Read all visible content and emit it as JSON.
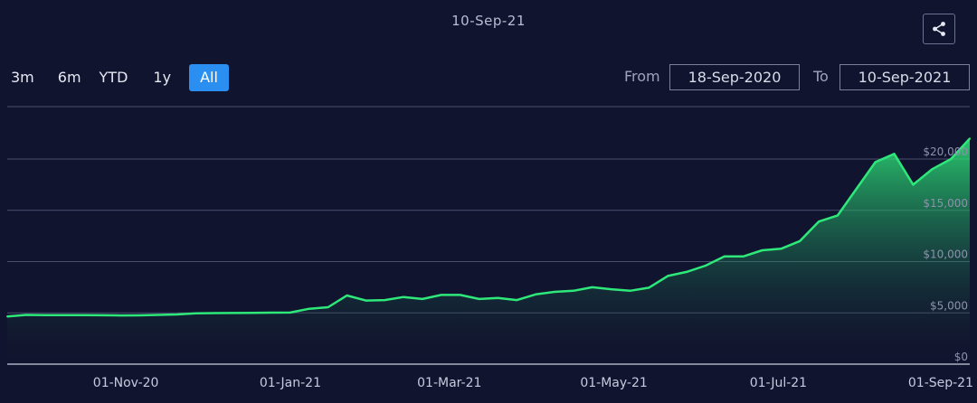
{
  "header": {
    "current_date": "10-Sep-21"
  },
  "share": {
    "icon": "share-icon"
  },
  "range_buttons": [
    {
      "label": "3m",
      "active": false
    },
    {
      "label": "6m",
      "active": false
    },
    {
      "label": "YTD",
      "active": false
    },
    {
      "label": "1y",
      "active": false
    },
    {
      "label": "All",
      "active": true
    }
  ],
  "date_range": {
    "from_label": "From",
    "from_value": "18-Sep-2020",
    "to_label": "To",
    "to_value": "10-Sep-2021"
  },
  "colors": {
    "background": "#11142e",
    "line": "#2ee87a",
    "active_button": "#2a8ff0",
    "grid": "#4a4f6e"
  },
  "chart_data": {
    "type": "area",
    "xlabel": "",
    "ylabel": "",
    "y_ticks": [
      "$0",
      "$5,000",
      "$10,000",
      "$15,000",
      "$20,000"
    ],
    "y_tick_values": [
      0,
      5000,
      10000,
      15000,
      20000
    ],
    "ylim": [
      0,
      22500
    ],
    "x_ticks": [
      "01-Nov-20",
      "01-Jan-21",
      "01-Mar-21",
      "01-May-21",
      "01-Jul-21",
      "01-Sep-21"
    ],
    "x_tick_dates": [
      "2020-11-01",
      "2021-01-01",
      "2021-03-01",
      "2021-05-01",
      "2021-07-01",
      "2021-09-01"
    ],
    "xlim": [
      "2020-09-18",
      "2021-09-10"
    ],
    "grid": true,
    "series": [
      {
        "x": [
          "2020-09-18",
          "2020-09-25",
          "2020-10-02",
          "2020-10-09",
          "2020-10-16",
          "2020-10-23",
          "2020-10-30",
          "2020-11-06",
          "2020-11-13",
          "2020-11-20",
          "2020-11-27",
          "2020-12-04",
          "2020-12-11",
          "2020-12-18",
          "2020-12-25",
          "2021-01-01",
          "2021-01-08",
          "2021-01-15",
          "2021-01-22",
          "2021-01-29",
          "2021-02-05",
          "2021-02-12",
          "2021-02-19",
          "2021-02-26",
          "2021-03-05",
          "2021-03-12",
          "2021-03-19",
          "2021-03-26",
          "2021-04-02",
          "2021-04-09",
          "2021-04-16",
          "2021-04-23",
          "2021-04-30",
          "2021-05-07",
          "2021-05-14",
          "2021-05-21",
          "2021-05-28",
          "2021-06-04",
          "2021-06-11",
          "2021-06-18",
          "2021-06-25",
          "2021-07-02",
          "2021-07-09",
          "2021-07-16",
          "2021-07-23",
          "2021-07-30",
          "2021-08-06",
          "2021-08-13",
          "2021-08-20",
          "2021-08-27",
          "2021-09-03",
          "2021-09-10"
        ],
        "values": [
          4650,
          4800,
          4780,
          4780,
          4780,
          4770,
          4750,
          4760,
          4800,
          4850,
          4950,
          4980,
          4990,
          5000,
          5020,
          5030,
          5400,
          5550,
          6700,
          6200,
          6250,
          6550,
          6350,
          6750,
          6750,
          6350,
          6450,
          6250,
          6800,
          7050,
          7150,
          7500,
          7300,
          7150,
          7450,
          8600,
          9000,
          9600,
          10500,
          10500,
          11100,
          11250,
          12000,
          13900,
          14500,
          17100,
          19700,
          20500,
          17500,
          19000,
          20000,
          22000
        ]
      }
    ]
  }
}
